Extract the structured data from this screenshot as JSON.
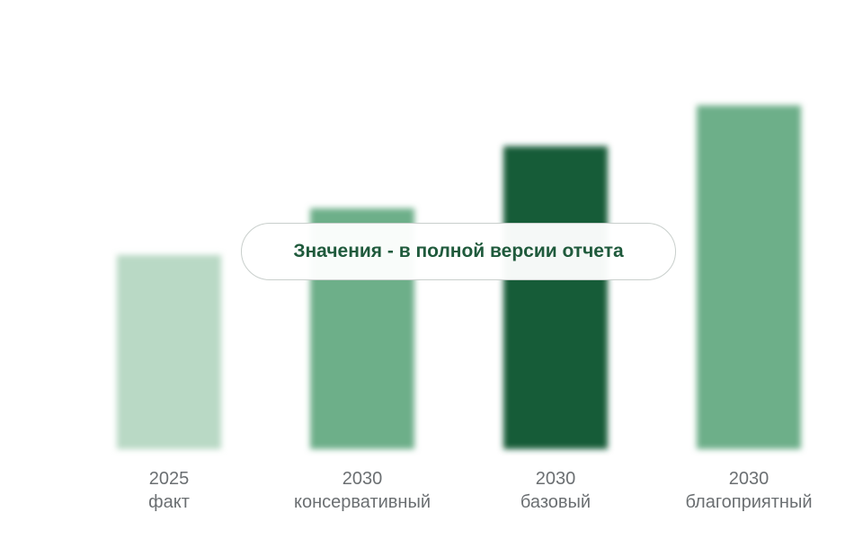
{
  "chart_data": {
    "type": "bar",
    "categories": [
      {
        "year": "2025",
        "scenario": "факт"
      },
      {
        "year": "2030",
        "scenario": "консервативный"
      },
      {
        "year": "2030",
        "scenario": "базовый"
      },
      {
        "year": "2030",
        "scenario": "благоприятный"
      }
    ],
    "values": [
      100,
      124,
      156,
      177
    ],
    "colors": [
      "#b9d9c5",
      "#6daf89",
      "#155c38",
      "#6daf89"
    ],
    "values_obscured": true,
    "title": "",
    "xlabel": "",
    "ylabel": "",
    "ylim": [
      0,
      185
    ],
    "grid": false,
    "legend": "none"
  },
  "notice": {
    "text": "Значения - в полной версии отчета"
  }
}
